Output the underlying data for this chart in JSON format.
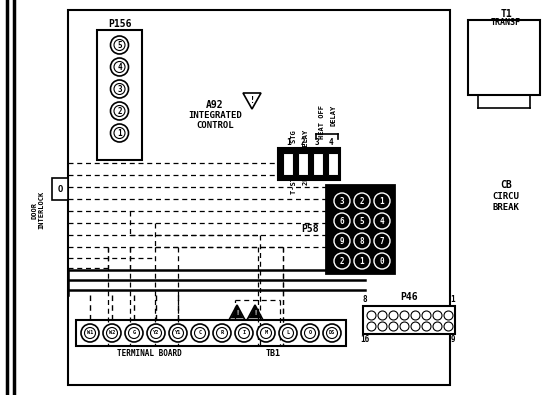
{
  "bg_color": "#ffffff",
  "line_color": "#000000",
  "fig_width": 5.54,
  "fig_height": 3.95,
  "p156_pins": [
    "5",
    "4",
    "3",
    "2",
    "1"
  ],
  "p58_pins": [
    [
      "3",
      "2",
      "1"
    ],
    [
      "6",
      "5",
      "4"
    ],
    [
      "9",
      "8",
      "7"
    ],
    [
      "2",
      "1",
      "0"
    ]
  ],
  "tb1_pins": [
    "W1",
    "W2",
    "G",
    "Y2",
    "Y1",
    "C",
    "R",
    "I",
    "M",
    "L",
    "O",
    "DS"
  ]
}
